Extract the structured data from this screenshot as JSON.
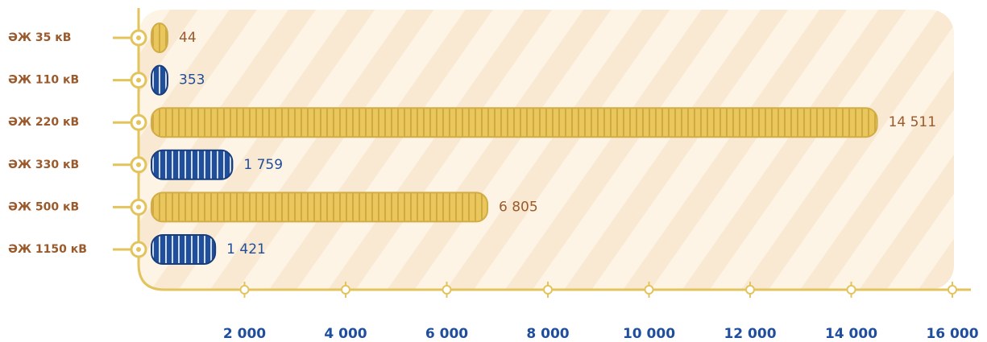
{
  "chart_data": {
    "type": "bar",
    "orientation": "horizontal",
    "categories": [
      "ӘЖ 35 кВ",
      "ӘЖ 110 кВ",
      "ӘЖ 220 кВ",
      "ӘЖ 330 кВ",
      "ӘЖ 500 кВ",
      "ӘЖ 1150 кВ"
    ],
    "values": [
      44,
      353,
      14511,
      1759,
      6805,
      1421
    ],
    "value_labels": [
      "44",
      "353",
      "14 511",
      "1 759",
      "6 805",
      "1 421"
    ],
    "colors": [
      "#e9c75c",
      "#1f4e9c",
      "#e9c75c",
      "#1f4e9c",
      "#e9c75c",
      "#1f4e9c"
    ],
    "xlim": [
      0,
      16000
    ],
    "xticks": [
      {
        "value": 2000,
        "label": "2 000"
      },
      {
        "value": 4000,
        "label": "4 000"
      },
      {
        "value": 6000,
        "label": "6 000"
      },
      {
        "value": 8000,
        "label": "8 000"
      },
      {
        "value": 10000,
        "label": "10 000"
      },
      {
        "value": 12000,
        "label": "12 000"
      },
      {
        "value": 14000,
        "label": "14 000"
      },
      {
        "value": 16000,
        "label": "16 000"
      }
    ]
  }
}
